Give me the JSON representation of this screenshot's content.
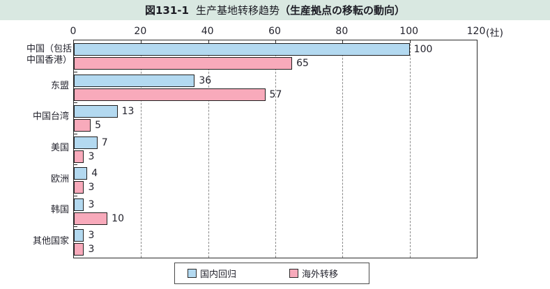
{
  "title": {
    "figure_label": "図131-1",
    "text": "生产基地转移趋势",
    "subtitle": "（生産拠点の移転の動向）"
  },
  "chart_data": {
    "type": "bar",
    "orientation": "horizontal",
    "title": "図131-1 生产基地转移趋势（生産拠点の移転の動向）",
    "categories": [
      "中国（包括\n中国香港）",
      "东盟",
      "中国台湾",
      "美国",
      "欧洲",
      "韩国",
      "其他国家"
    ],
    "series": [
      {
        "name": "国内回归",
        "color": "#b3d9f0",
        "values": [
          100,
          36,
          13,
          7,
          4,
          3,
          3
        ]
      },
      {
        "name": "海外转移",
        "color": "#f8aabb",
        "values": [
          65,
          57,
          5,
          3,
          3,
          10,
          3
        ]
      }
    ],
    "xlim": [
      0,
      120
    ],
    "x_ticks": [
      0,
      20,
      40,
      60,
      80,
      100,
      120
    ],
    "x_unit": "(社)",
    "xlabel": "",
    "ylabel": "",
    "grid": "dashed vertical gridlines every 20 units",
    "legend_position": "bottom-center",
    "value_labels": "right of bar end"
  },
  "legend": {
    "items": [
      {
        "label": "国内回归",
        "color": "#b3d9f0"
      },
      {
        "label": "海外转移",
        "color": "#f8aabb"
      }
    ]
  },
  "colors": {
    "title_band_bg": "#d9e8e1",
    "page_bg": "#ffffff",
    "bar_blue": "#b3d9f0",
    "bar_pink": "#f8aabb",
    "bar_border": "#1f1f1f",
    "plot_border": "#2a2a2a",
    "gridline": "#8a8a8a",
    "text": "#23232d"
  }
}
